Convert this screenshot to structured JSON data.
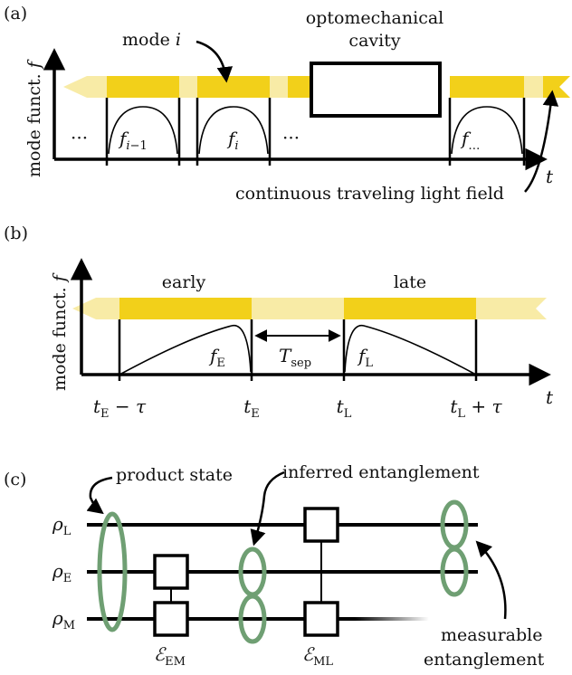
{
  "colors": {
    "band_dark": "#f2d01a",
    "band_light": "#f8eba6",
    "axis": "#000000",
    "ellipse": "#6f9f73"
  },
  "panel_a": {
    "tag": "(a)",
    "mode_label": "mode i",
    "cavity_label_line1": "optomechanical",
    "cavity_label_line2": "cavity",
    "y_label": "mode funct. f",
    "x_label": "t",
    "ellipsis": "···",
    "mode_prev": "f_{i−1}",
    "mode_cur": "f_i",
    "mode_more": "f_…",
    "field_label": "continuous traveling light field"
  },
  "panel_b": {
    "tag": "(b)",
    "y_label": "mode funct. f",
    "x_label": "t",
    "early_label": "early",
    "late_label": "late",
    "f_early": "f_E",
    "f_late": "f_L",
    "t_sep": "T_sep",
    "ticks": [
      "t_E − τ",
      "t_E",
      "t_L",
      "t_L + τ"
    ]
  },
  "panel_c": {
    "tag": "(c)",
    "product_state": "product state",
    "inferred": "inferred entanglement",
    "measurable_line1": "measurable",
    "measurable_line2": "entanglement",
    "rho_L": "ρ_L",
    "rho_E": "ρ_E",
    "rho_M": "ρ_M",
    "gate_EM": "ℰ_EM",
    "gate_ML": "ℰ_ML"
  }
}
